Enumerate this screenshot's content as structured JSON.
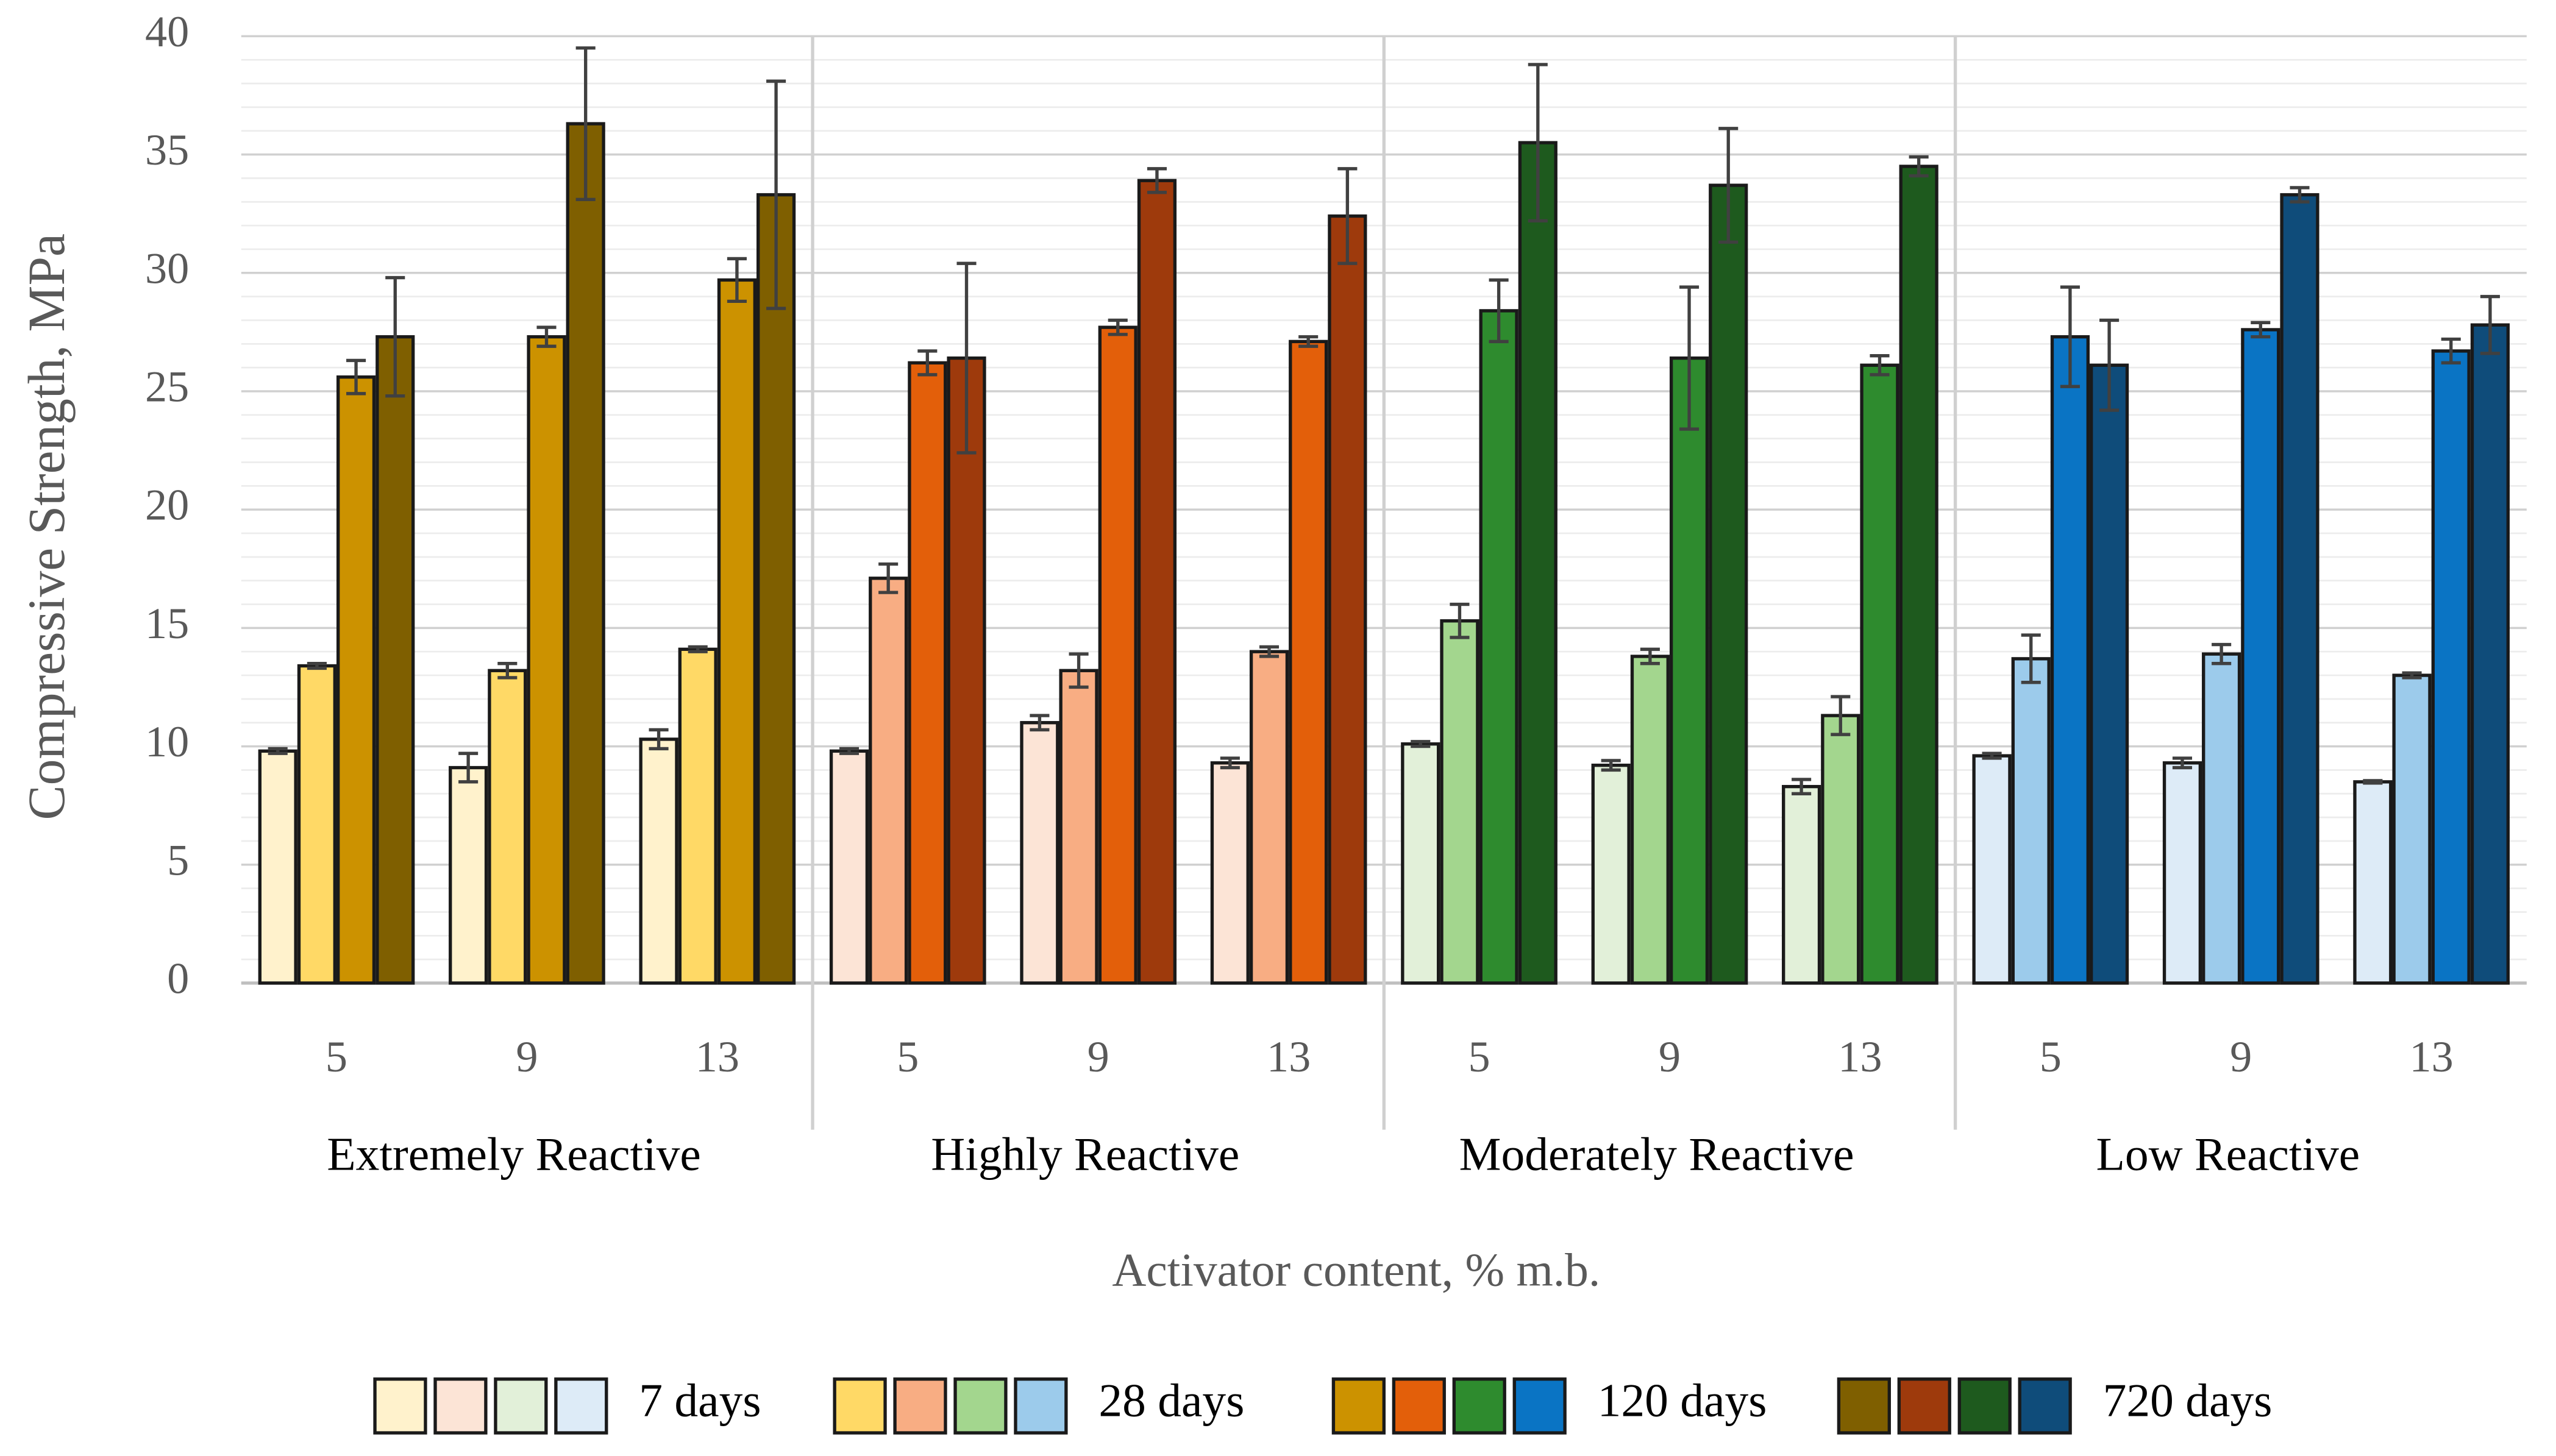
{
  "chart_data": {
    "type": "bar",
    "y_label": "Compressive Strength, MPa",
    "x_label": "Activator content, % m.b.",
    "groups": [
      "Extremely Reactive",
      "Highly Reactive",
      "Moderately Reactive",
      "Low Reactive"
    ],
    "categories": [
      "5",
      "9",
      "13",
      "5",
      "9",
      "13",
      "5",
      "9",
      "13",
      "5",
      "9",
      "13"
    ],
    "series": [
      {
        "name": "7 days",
        "colors": [
          "#fff2cc",
          "#fce4d6",
          "#e2f0d9",
          "#ddebf7"
        ],
        "values": [
          9.8,
          9.1,
          10.3,
          9.8,
          11.0,
          9.3,
          10.1,
          9.2,
          8.3,
          9.6,
          9.3,
          8.5
        ],
        "errors": [
          0.1,
          0.6,
          0.4,
          0.1,
          0.3,
          0.2,
          0.1,
          0.2,
          0.3,
          0.1,
          0.2,
          0.05
        ]
      },
      {
        "name": "28 days",
        "colors": [
          "#ffd966",
          "#f8ad83",
          "#a3d68e",
          "#9ccbeb"
        ],
        "values": [
          13.4,
          13.2,
          14.1,
          17.1,
          13.2,
          14.0,
          15.3,
          13.8,
          11.3,
          13.7,
          13.9,
          13.0
        ],
        "errors": [
          0.1,
          0.3,
          0.1,
          0.6,
          0.7,
          0.2,
          0.7,
          0.3,
          0.8,
          1.0,
          0.4,
          0.1
        ]
      },
      {
        "name": "120 days",
        "colors": [
          "#cc9200",
          "#e35f0a",
          "#2e8b2e",
          "#0a74c4"
        ],
        "values": [
          25.6,
          27.3,
          29.7,
          26.2,
          27.7,
          27.1,
          28.4,
          26.4,
          26.1,
          27.3,
          27.6,
          26.7
        ],
        "errors": [
          0.7,
          0.4,
          0.9,
          0.5,
          0.3,
          0.2,
          1.3,
          3.0,
          0.4,
          2.1,
          0.3,
          0.5
        ]
      },
      {
        "name": "720 days",
        "colors": [
          "#7f5f00",
          "#9e3a0c",
          "#1e5a1e",
          "#0f4c7a"
        ],
        "values": [
          27.3,
          36.3,
          33.3,
          26.4,
          33.9,
          32.4,
          35.5,
          33.7,
          34.5,
          26.1,
          33.3,
          27.8
        ],
        "errors": [
          2.5,
          3.2,
          4.8,
          4.0,
          0.5,
          2.0,
          3.3,
          2.4,
          0.4,
          1.9,
          0.3,
          1.2
        ]
      }
    ],
    "ylim": [
      0,
      40
    ],
    "yticks": [
      0,
      5,
      10,
      15,
      20,
      25,
      30,
      35,
      40
    ],
    "grid": true,
    "minor_grid": true,
    "error_bars": true,
    "legend": "bottom"
  }
}
